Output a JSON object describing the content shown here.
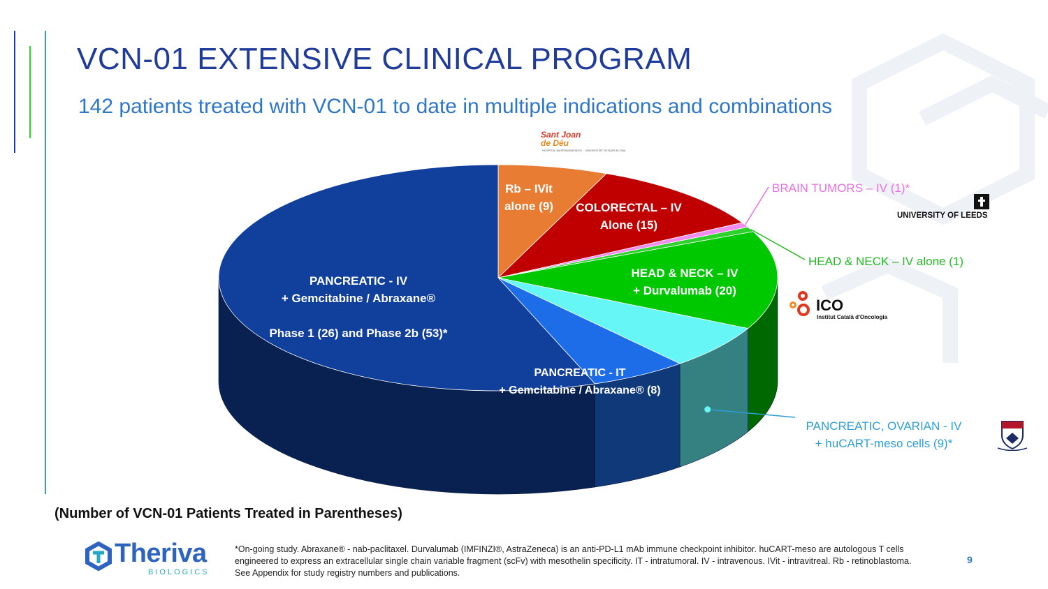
{
  "slide": {
    "title": "VCN-01 EXTENSIVE CLINICAL PROGRAM",
    "subtitle": "142 patients treated with VCN-01 to date in multiple indications and combinations",
    "note": "(Number of VCN-01 Patients Treated in Parentheses)",
    "footnote": "*On-going study. Abraxane® - nab-paclitaxel. Durvalumab (IMFINZI®, AstraZeneca) is an anti-PD-L1 mAb immune checkpoint inhibitor. huCART-meso are autologous T cells engineered to express an extracellular single chain variable fragment (scFv) with mesothelin specificity. IT - intratumoral. IV - intravenous. IVit - intravitreal. Rb - retinoblastoma. See Appendix for study registry numbers and publications.",
    "page_number": "9"
  },
  "brand": {
    "name": "Theriva",
    "tagline": "BIOLOGICS"
  },
  "logos": {
    "leeds": "UNIVERSITY OF LEEDS",
    "ico_name": "ICO",
    "ico_full": "Institut Català d'Oncologia",
    "sjd_line1": "Sant Joan",
    "sjd_line2": "de Déu",
    "sjd_small": "HOSPITAL MATERNOINFANTIL · UNIVERSITAT DE BARCELONA"
  },
  "colors": {
    "title": "#1f3c9b",
    "subtitle": "#2e77c8",
    "accent_blue": "#1f3c9b",
    "accent_green": "#2fd12c",
    "accent_cyan": "#26a6c9"
  },
  "chart_data": {
    "type": "pie",
    "style": "3d",
    "title": "",
    "total": 142,
    "slices": [
      {
        "key": "rb",
        "label": "Rb – IVit alone (9)",
        "lines": [
          "Rb – IVit",
          "alone (9)"
        ],
        "value": 9,
        "color": "#e87c33",
        "label_pos": "inside"
      },
      {
        "key": "colorectal",
        "label": "COLORECTAL – IV Alone (15)",
        "lines": [
          "COLORECTAL – IV",
          "Alone (15)"
        ],
        "value": 15,
        "color": "#c00000",
        "label_pos": "inside"
      },
      {
        "key": "brain",
        "label": "BRAIN TUMORS – IV (1)*",
        "lines": [
          "BRAIN TUMORS – IV (1)*"
        ],
        "value": 1,
        "color": "#f38cf0",
        "label_pos": "callout",
        "text_color": "#e86fe3"
      },
      {
        "key": "headneck_alone",
        "label": "HEAD & NECK – IV alone (1)",
        "lines": [
          "HEAD & NECK – IV alone (1)"
        ],
        "value": 1,
        "color": "#2fd12c",
        "label_pos": "callout",
        "text_color": "#22bb22"
      },
      {
        "key": "headneck_durva",
        "label": "HEAD & NECK – IV + Durvalumab (20)",
        "lines": [
          "HEAD & NECK – IV",
          "+ Durvalumab (20)"
        ],
        "value": 20,
        "color": "#00c800",
        "label_pos": "inside"
      },
      {
        "key": "pancreatic_car",
        "label": "PANCREATIC, OVARIAN - IV + huCART-meso cells (9)*",
        "lines": [
          "PANCREATIC, OVARIAN - IV",
          "+ huCART-meso cells (9)*"
        ],
        "value": 9,
        "color": "#66f6f6",
        "label_pos": "callout",
        "text_color": "#2e9fd6"
      },
      {
        "key": "pancreatic_it",
        "label": "PANCREATIC - IT + Gemcitabine / Abraxane® (8)",
        "lines": [
          "PANCREATIC - IT",
          "+ Gemcitabine / Abraxane® (8)"
        ],
        "value": 8,
        "color": "#1e6de8",
        "label_pos": "inside"
      },
      {
        "key": "pancreatic_iv",
        "label": "PANCREATIC - IV + Gemcitabine / Abraxane® Phase 1 (26) and Phase 2b (53)*",
        "lines": [
          "PANCREATIC - IV",
          "+ Gemcitabine / Abraxane®",
          "",
          "Phase 1 (26) and Phase 2b (53)*"
        ],
        "value": 79,
        "color": "#103f9c",
        "label_pos": "inside"
      }
    ]
  }
}
